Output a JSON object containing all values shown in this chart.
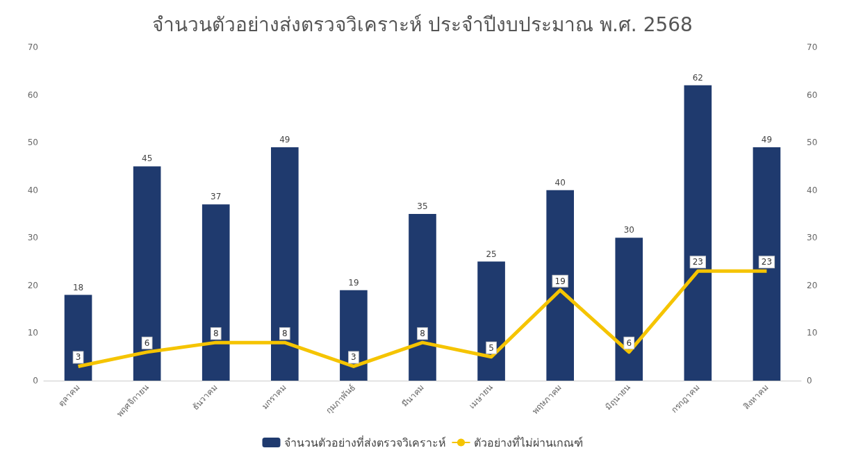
{
  "chart_data": {
    "type": "bar",
    "title": "จำนวนตัวอย่างส่งตรวจวิเคราะห์ ประจำปีงบประมาณ พ.ศ. 2568",
    "categories": [
      "ตุลาคม",
      "พฤศจิกายน",
      "ธันวาคม",
      "มกราคม",
      "กุมภาพันธ์",
      "มีนาคม",
      "เมษายน",
      "พฤษภาคม",
      "มิถุนายน",
      "กรกฎาคม",
      "สิงหาคม"
    ],
    "series": [
      {
        "name": "จำนวนตัวอย่างที่ส่งตรวจวิเคราะห์",
        "color": "#1f3a6e",
        "values": [
          18,
          45,
          37,
          49,
          19,
          35,
          25,
          40,
          30,
          62,
          49
        ]
      },
      {
        "name": "ตัวอย่างที่ไม่ผ่านเกณฑ์",
        "type": "line",
        "axis": "y2",
        "color": "#f5c400",
        "marker": "none",
        "values": [
          3,
          6,
          8,
          8,
          3,
          8,
          5,
          19,
          6,
          23,
          23
        ]
      }
    ],
    "ylim": [
      0,
      70
    ],
    "yticks": [
      0,
      10,
      20,
      30,
      40,
      50,
      60,
      70
    ],
    "y2lim": [
      0,
      70
    ],
    "y2ticks": [
      0,
      10,
      20,
      30,
      40,
      50,
      60,
      70
    ],
    "grid": false,
    "legend": "bottom",
    "data_labels": true
  }
}
